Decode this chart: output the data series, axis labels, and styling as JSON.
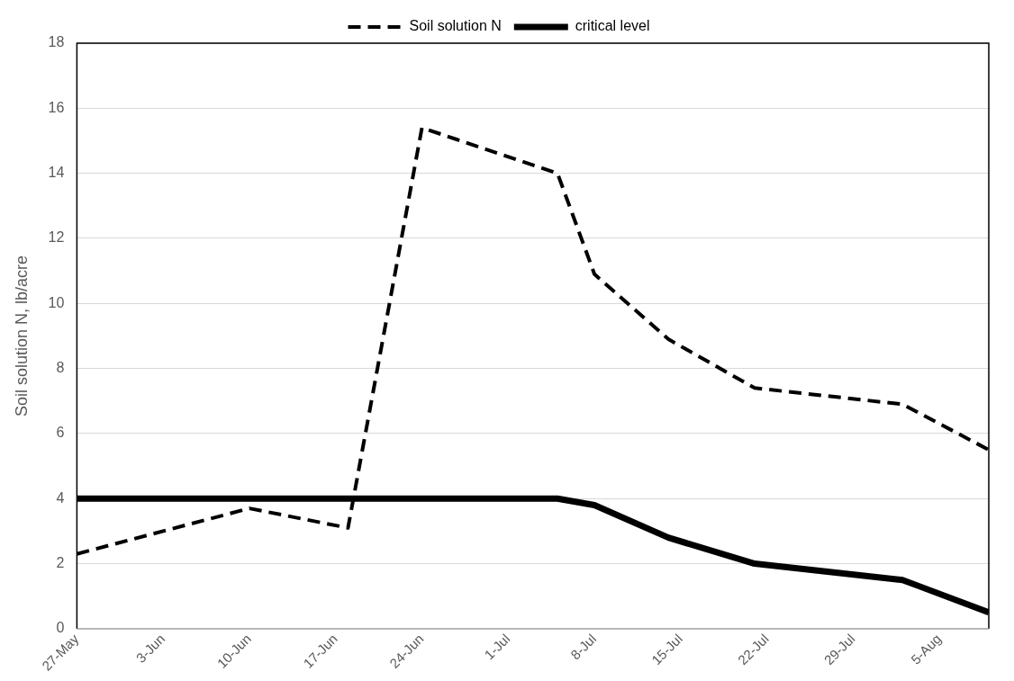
{
  "chart_data": {
    "type": "line",
    "ylabel": "Soil solution N, lb/acre",
    "x": [
      "--05-27",
      "--06-10",
      "--06-18",
      "--06-24",
      "--07-05",
      "--07-08",
      "--07-14",
      "--07-21",
      "--08-02",
      "--08-09"
    ],
    "series": [
      {
        "name": "Soil solution N",
        "color": "#000000",
        "line_style": "dashed",
        "values": [
          2.3,
          3.7,
          3.1,
          15.4,
          14.0,
          10.9,
          8.9,
          7.4,
          6.9,
          5.5
        ]
      },
      {
        "name": "critical level",
        "color": "#000000",
        "line_style": "solid",
        "values": [
          4,
          4,
          4,
          4,
          4,
          3.8,
          2.8,
          2.0,
          1.5,
          0.5
        ]
      }
    ],
    "xlim": [
      "--05-27",
      "--08-09"
    ],
    "xticks": [
      {
        "value": "--05-27",
        "label": "27-May"
      },
      {
        "value": "--06-03",
        "label": "3-Jun"
      },
      {
        "value": "--06-10",
        "label": "10-Jun"
      },
      {
        "value": "--06-17",
        "label": "17-Jun"
      },
      {
        "value": "--06-24",
        "label": "24-Jun"
      },
      {
        "value": "--07-01",
        "label": "1-Jul"
      },
      {
        "value": "--07-08",
        "label": "8-Jul"
      },
      {
        "value": "--07-15",
        "label": "15-Jul"
      },
      {
        "value": "--07-22",
        "label": "22-Jul"
      },
      {
        "value": "--07-29",
        "label": "29-Jul"
      },
      {
        "value": "--08-05",
        "label": "5-Aug"
      }
    ],
    "ylim": [
      0,
      18
    ],
    "yticks": [
      0,
      2,
      4,
      6,
      8,
      10,
      12,
      14,
      16,
      18
    ],
    "grid": "y",
    "legend": "top",
    "marker": "none"
  }
}
